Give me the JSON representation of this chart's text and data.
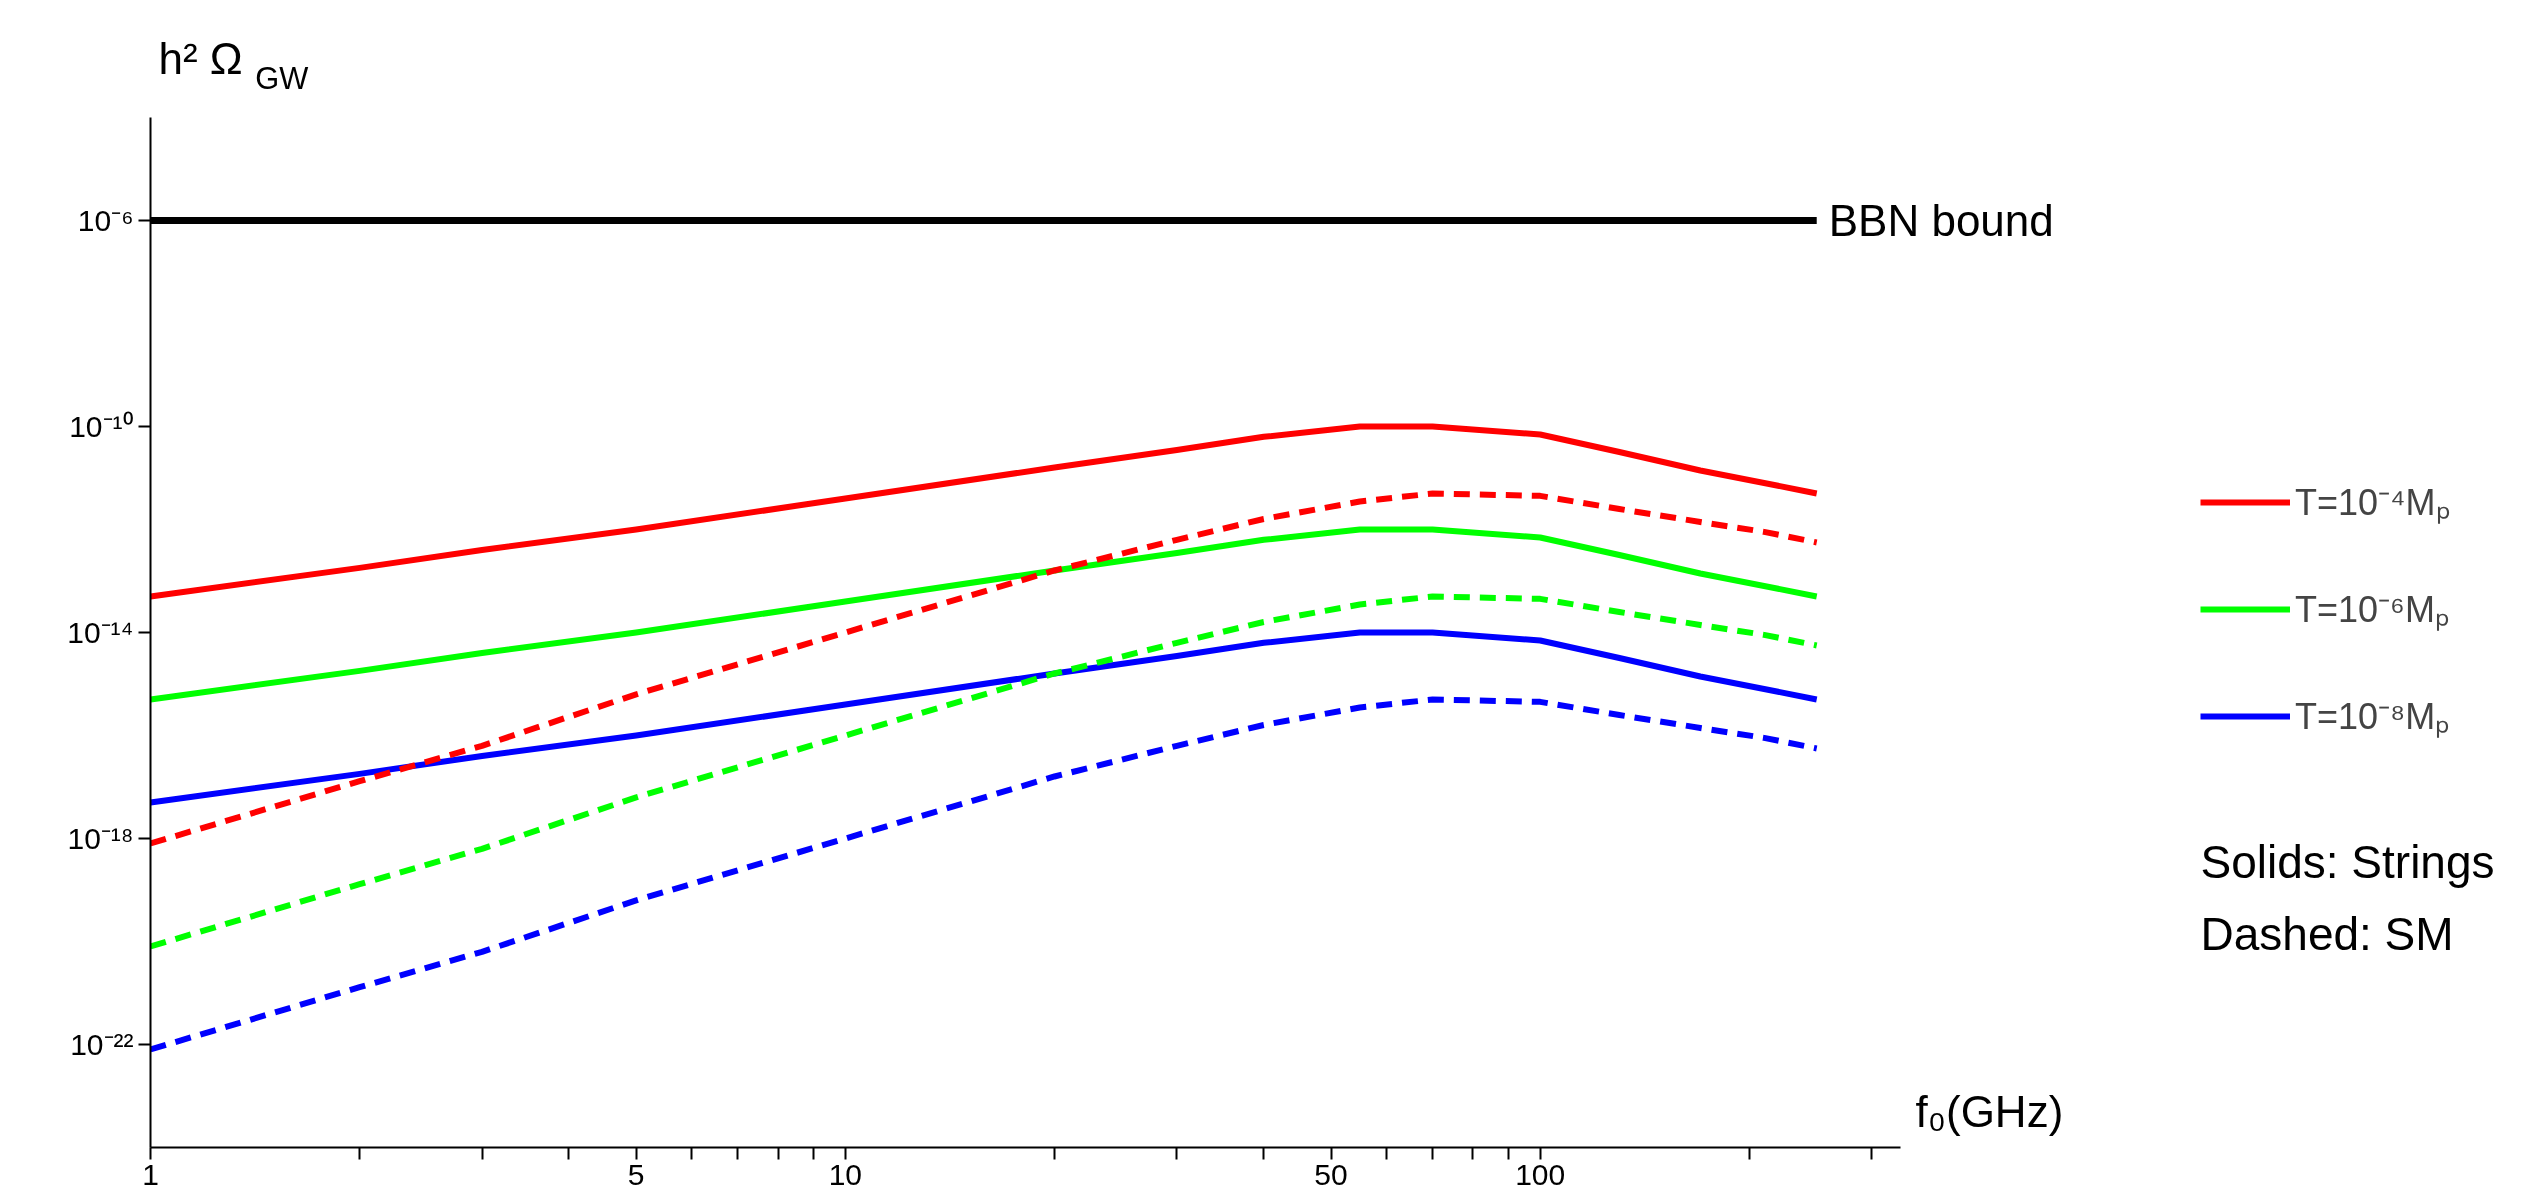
{
  "chart_data": {
    "type": "line",
    "ylabel": "h² Ω$_{GW}$",
    "xlabel": "f₀(GHz)",
    "log": "xy",
    "grid": false,
    "legend": "right",
    "x": [
      1,
      2,
      3,
      5,
      10,
      20,
      30,
      40,
      55,
      70,
      100,
      130,
      170,
      210,
      250
    ],
    "xlim": [
      1,
      330
    ],
    "xticks": [
      1,
      {
        "value": 2,
        "label": null
      },
      {
        "value": 3,
        "label": null
      },
      {
        "value": 4,
        "label": null
      },
      5,
      {
        "value": 6,
        "label": null
      },
      {
        "value": 7,
        "label": null
      },
      {
        "value": 8,
        "label": null
      },
      {
        "value": 9,
        "label": null
      },
      10,
      {
        "value": 20,
        "label": null
      },
      {
        "value": 30,
        "label": null
      },
      {
        "value": 40,
        "label": null
      },
      50,
      {
        "value": 60,
        "label": null
      },
      {
        "value": 70,
        "label": null
      },
      {
        "value": 80,
        "label": null
      },
      {
        "value": 90,
        "label": null
      },
      100,
      {
        "value": 200,
        "label": null
      },
      {
        "value": 300,
        "label": null
      }
    ],
    "ylim": [
      1e-24,
      0.0001
    ],
    "yticks": [
      {
        "value": 1e-22,
        "label": "10⁻²²"
      },
      {
        "value": 1e-18,
        "label": "10⁻¹⁸"
      },
      {
        "value": 1e-14,
        "label": "10⁻¹⁴"
      },
      {
        "value": 1e-10,
        "label": "10⁻¹⁰"
      },
      {
        "value": 1e-06,
        "label": "10⁻⁶"
      }
    ],
    "series": [
      {
        "name": "T=10⁻⁴Mₚ",
        "color": "#ff0000",
        "line_style": "solid",
        "values": [
          5e-14,
          1.8e-13,
          4e-13,
          1e-12,
          4e-12,
          1.6e-11,
          3.5e-11,
          6.3e-11,
          1e-10,
          1e-10,
          7e-11,
          3.2e-11,
          1.4e-11,
          8e-12,
          5e-12
        ]
      },
      {
        "name": "T=10⁻⁶Mₚ",
        "color": "#00ff00",
        "line_style": "solid",
        "values": [
          5e-16,
          1.8e-15,
          4e-15,
          1e-14,
          4e-14,
          1.6e-13,
          3.5e-13,
          6.3e-13,
          1e-12,
          1e-12,
          7e-13,
          3.2e-13,
          1.4e-13,
          8e-14,
          5e-14
        ]
      },
      {
        "name": "T=10⁻⁸Mₚ",
        "color": "#0000ff",
        "line_style": "solid",
        "values": [
          5e-18,
          1.8e-17,
          4e-17,
          1e-16,
          4e-16,
          1.6e-15,
          3.5e-15,
          6.3e-15,
          1e-14,
          1e-14,
          7e-15,
          3.2e-15,
          1.4e-15,
          8e-16,
          5e-16
        ]
      },
      {
        "color": "#ff0000",
        "line_style": "dashed",
        "values": [
          8e-19,
          1.3e-17,
          6.3e-17,
          6.3e-16,
          1e-14,
          1.6e-13,
          6.3e-13,
          1.6e-12,
          3.5e-12,
          5e-12,
          4.5e-12,
          2.5e-12,
          1.4e-12,
          9e-13,
          5.6e-13
        ]
      },
      {
        "color": "#00ff00",
        "line_style": "dashed",
        "values": [
          8e-21,
          1.3e-19,
          6.3e-19,
          6.3e-18,
          1e-16,
          1.6e-15,
          6.3e-15,
          1.6e-14,
          3.5e-14,
          5e-14,
          4.5e-14,
          2.5e-14,
          1.4e-14,
          9e-15,
          5.6e-15
        ]
      },
      {
        "color": "#0000ff",
        "line_style": "dashed",
        "values": [
          8e-23,
          1.3e-21,
          6.3e-21,
          6.3e-20,
          1e-18,
          1.6e-17,
          6.3e-17,
          1.6e-16,
          3.5e-16,
          5e-16,
          4.5e-16,
          2.5e-16,
          1.4e-16,
          9e-17,
          5.6e-17
        ]
      }
    ],
    "ref_lines": [
      {
        "axis": "y",
        "value": 1e-06,
        "label": "BBN bound",
        "color": "#000000"
      }
    ],
    "annotations": [
      "Solids: Strings",
      "Dashed: SM"
    ]
  }
}
